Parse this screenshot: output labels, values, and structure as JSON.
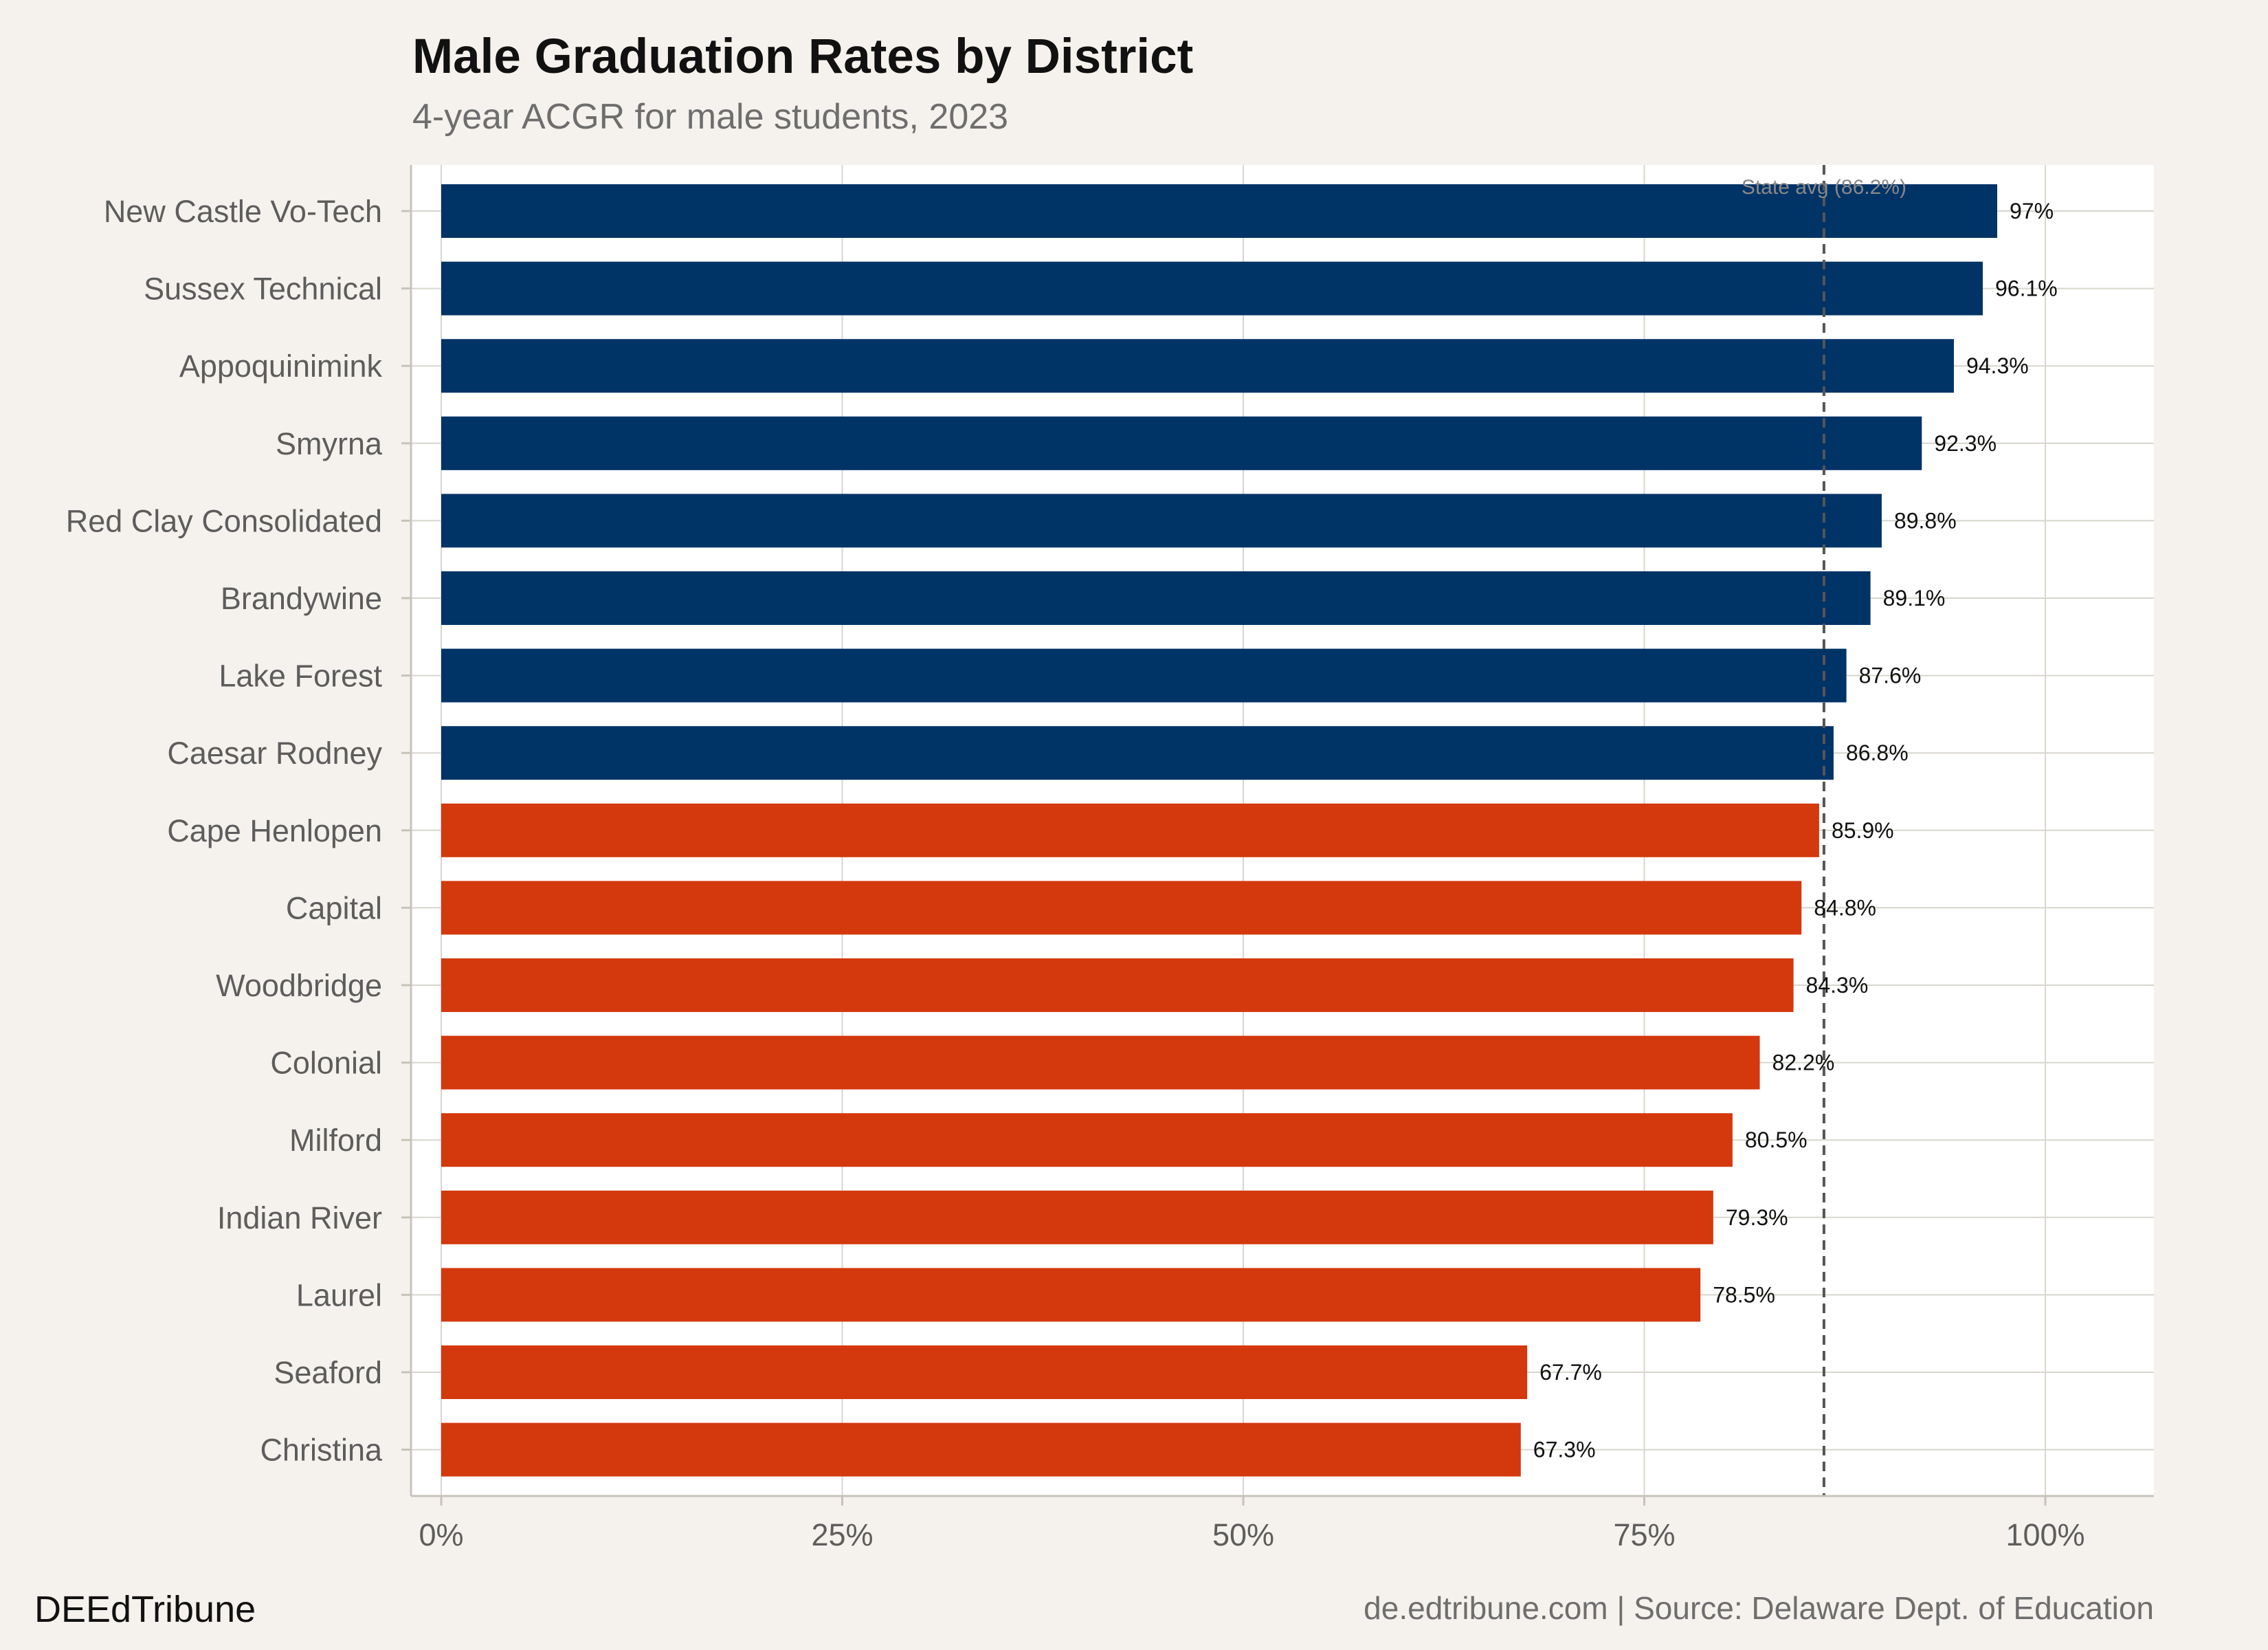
{
  "chart_data": {
    "type": "bar",
    "orientation": "horizontal",
    "title": "Male Graduation Rates by District",
    "subtitle": "4-year ACGR for male students, 2023",
    "categories": [
      "New Castle Vo-Tech",
      "Sussex Technical",
      "Appoquinimink",
      "Smyrna",
      "Red Clay Consolidated",
      "Brandywine",
      "Lake Forest",
      "Caesar Rodney",
      "Cape Henlopen",
      "Capital",
      "Woodbridge",
      "Colonial",
      "Milford",
      "Indian River",
      "Laurel",
      "Seaford",
      "Christina"
    ],
    "values": [
      97,
      96.1,
      94.3,
      92.3,
      89.8,
      89.1,
      87.6,
      86.8,
      85.9,
      84.8,
      84.3,
      82.2,
      80.5,
      79.3,
      78.5,
      67.7,
      67.3
    ],
    "value_labels": [
      "97%",
      "96.1%",
      "94.3%",
      "92.3%",
      "89.8%",
      "89.1%",
      "87.6%",
      "86.8%",
      "85.9%",
      "84.8%",
      "84.3%",
      "82.2%",
      "80.5%",
      "79.3%",
      "78.5%",
      "67.7%",
      "67.3%"
    ],
    "xlim": [
      0,
      100
    ],
    "x_ticks": [
      0,
      25,
      50,
      75,
      100
    ],
    "x_tick_labels": [
      "0%",
      "25%",
      "50%",
      "75%",
      "100%"
    ],
    "reference_line": {
      "value": 86.2,
      "label": "State avg (86.2%)"
    },
    "colors": {
      "above_average": "#003366",
      "below_average": "#d4380d",
      "reference": "#555555"
    },
    "grid": true,
    "legend": "none"
  },
  "footer": {
    "brand": "DEEdTribune",
    "caption": "de.edtribune.com | Source: Delaware Dept. of Education"
  }
}
